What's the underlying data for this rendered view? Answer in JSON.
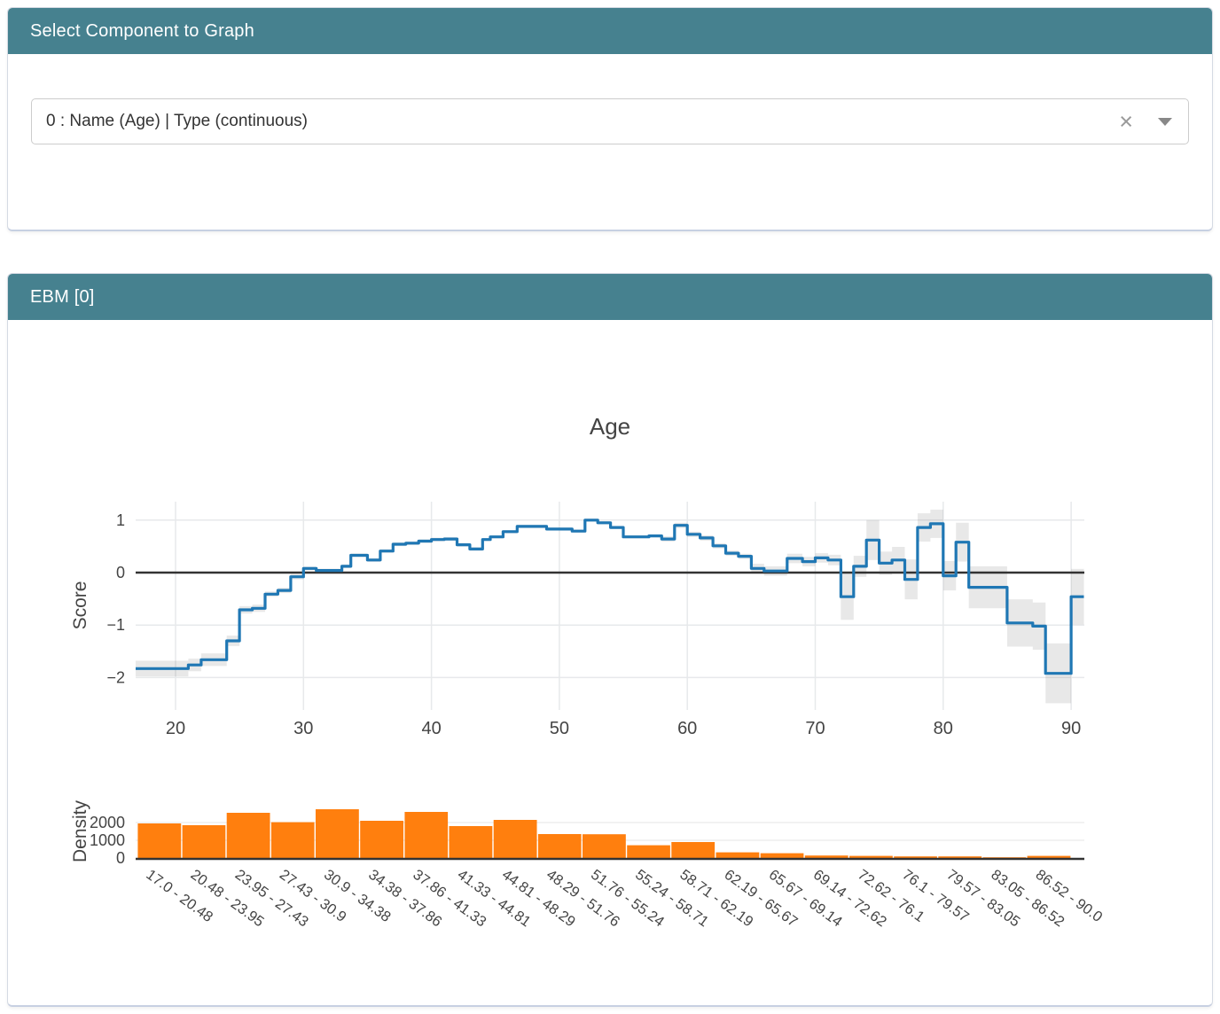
{
  "select_panel": {
    "header": "Select Component to Graph",
    "dropdown_value": "0 : Name (Age) | Type (continuous)",
    "clear_icon": "×"
  },
  "ebm_panel": {
    "header": "EBM [0]"
  },
  "chart_data": {
    "type": "line+bar",
    "title": "Age",
    "line_chart": {
      "ylabel": "Score",
      "yticks": [
        1,
        0,
        -1,
        -2
      ],
      "xticks": [
        20,
        30,
        40,
        50,
        60,
        70,
        80,
        90
      ],
      "x_start": 16.88,
      "x_end": 91.0,
      "line_color": "#1f77b4",
      "zero_line_color": "#333333",
      "band_color": "rgba(68,68,68,0.12)",
      "steps": [
        [
          16.88,
          -1.83
        ],
        [
          21,
          -1.76
        ],
        [
          22,
          -1.66
        ],
        [
          24,
          -1.3
        ],
        [
          25,
          -0.71
        ],
        [
          26,
          -0.68
        ],
        [
          27,
          -0.41
        ],
        [
          28,
          -0.34
        ],
        [
          29,
          -0.08
        ],
        [
          30,
          0.08
        ],
        [
          31,
          0.04
        ],
        [
          33,
          0.12
        ],
        [
          33.7,
          0.33
        ],
        [
          35,
          0.24
        ],
        [
          36,
          0.41
        ],
        [
          37,
          0.54
        ],
        [
          38,
          0.56
        ],
        [
          39,
          0.6
        ],
        [
          40,
          0.63
        ],
        [
          41,
          0.64
        ],
        [
          42,
          0.53
        ],
        [
          43,
          0.45
        ],
        [
          44,
          0.63
        ],
        [
          44.6,
          0.68
        ],
        [
          45.6,
          0.78
        ],
        [
          46.7,
          0.88
        ],
        [
          49,
          0.83
        ],
        [
          51,
          0.79
        ],
        [
          52,
          1.0
        ],
        [
          53,
          0.95
        ],
        [
          54,
          0.86
        ],
        [
          55,
          0.68
        ],
        [
          57,
          0.7
        ],
        [
          58,
          0.64
        ],
        [
          59,
          0.9
        ],
        [
          60,
          0.73
        ],
        [
          61,
          0.66
        ],
        [
          62,
          0.51
        ],
        [
          63,
          0.37
        ],
        [
          64,
          0.31
        ],
        [
          65,
          0.08
        ],
        [
          66,
          0.03
        ],
        [
          67.8,
          0.27
        ],
        [
          69,
          0.21
        ],
        [
          70,
          0.28
        ],
        [
          71,
          0.24
        ],
        [
          72,
          -0.46
        ],
        [
          73,
          0.12
        ],
        [
          74,
          0.62
        ],
        [
          75,
          0.18
        ],
        [
          76,
          0.24
        ],
        [
          77,
          -0.13
        ],
        [
          78,
          0.86
        ],
        [
          79,
          0.93
        ],
        [
          80,
          -0.06
        ],
        [
          81,
          0.58
        ],
        [
          82,
          -0.28
        ],
        [
          85,
          -0.96
        ],
        [
          87,
          -1.02
        ],
        [
          88,
          -1.92
        ],
        [
          90,
          -0.46
        ]
      ],
      "band_halfwidths": [
        [
          16.88,
          21,
          0.15
        ],
        [
          21,
          24,
          0.12
        ],
        [
          24,
          25,
          0.1
        ],
        [
          25,
          27,
          0.07
        ],
        [
          27,
          30,
          0.05
        ],
        [
          30,
          44,
          0.035
        ],
        [
          44,
          58,
          0.03
        ],
        [
          58,
          65,
          0.05
        ],
        [
          65,
          71,
          0.09
        ],
        [
          71,
          72,
          0.1
        ],
        [
          72,
          73,
          0.44
        ],
        [
          73,
          74,
          0.2
        ],
        [
          74,
          75,
          0.38
        ],
        [
          75,
          76,
          0.22
        ],
        [
          76,
          77,
          0.25
        ],
        [
          77,
          78,
          0.38
        ],
        [
          78,
          80,
          0.27
        ],
        [
          80,
          81,
          0.28
        ],
        [
          81,
          82,
          0.37
        ],
        [
          82,
          85,
          0.4
        ],
        [
          85,
          88,
          0.45
        ],
        [
          88,
          90,
          0.57
        ],
        [
          90,
          91.0,
          0.53
        ]
      ]
    },
    "histogram": {
      "ylabel": "Density",
      "yticks": [
        2000,
        1000,
        0
      ],
      "bar_color": "#ff7f0e",
      "bin_edges": [
        17.0,
        20.48,
        23.95,
        27.43,
        30.9,
        34.38,
        37.86,
        41.33,
        44.81,
        48.29,
        51.76,
        55.24,
        58.71,
        62.19,
        65.67,
        69.14,
        72.62,
        76.1,
        79.57,
        83.05,
        86.52,
        90.0
      ],
      "bin_labels": [
        "17.0 - 20.48",
        "20.48 - 23.95",
        "23.95 - 27.43",
        "27.43 - 30.9",
        "30.9 - 34.38",
        "34.38 - 37.86",
        "37.86 - 41.33",
        "41.33 - 44.81",
        "44.81 - 48.29",
        "48.29 - 51.76",
        "51.76 - 55.24",
        "55.24 - 58.71",
        "58.71 - 62.19",
        "62.19 - 65.67",
        "65.67 - 69.14",
        "69.14 - 72.62",
        "72.62 - 76.1",
        "76.1 - 79.57",
        "79.57 - 83.05",
        "83.05 - 86.52",
        "86.52 - 90.0"
      ],
      "values": [
        1950,
        1850,
        2550,
        2020,
        2750,
        2100,
        2600,
        1800,
        2150,
        1350,
        1340,
        720,
        900,
        320,
        270,
        140,
        120,
        90,
        90,
        40,
        120
      ]
    }
  }
}
